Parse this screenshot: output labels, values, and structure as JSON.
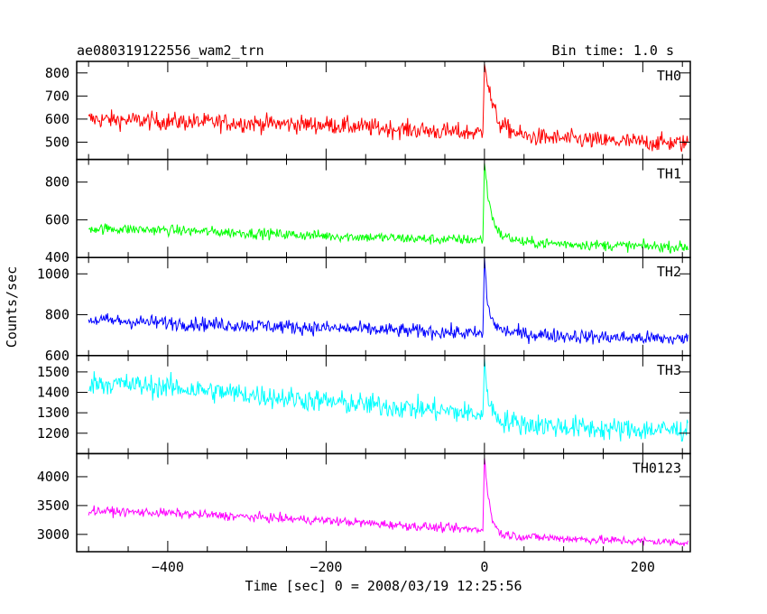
{
  "chart_data": {
    "type": "line",
    "title": "ae080319122556_wam2_trn",
    "subtitle": "Bin time: 1.0 s",
    "xlabel": "Time [sec] 0 = 2008/03/19 12:25:56",
    "ylabel": "Counts/sec",
    "xlim": [
      -515,
      260
    ],
    "x_ticks": [
      -400,
      -200,
      0,
      200
    ],
    "x_tick_labels": [
      "−400",
      "−200",
      "0",
      "200"
    ],
    "x_range_data": [
      -500,
      257
    ],
    "peak_time": 0,
    "bin_time": 1.0,
    "panels": [
      {
        "name": "TH0",
        "color": "#ff0000",
        "ylim": [
          425,
          850
        ],
        "yticks": [
          500,
          600,
          700,
          800
        ],
        "trend": [
          [
            -500,
            600
          ],
          [
            -400,
            590
          ],
          [
            -200,
            575
          ],
          [
            -50,
            545
          ],
          [
            -2,
            540
          ],
          [
            0,
            850
          ],
          [
            4,
            760
          ],
          [
            10,
            660
          ],
          [
            20,
            575
          ],
          [
            50,
            525
          ],
          [
            150,
            505
          ],
          [
            257,
            495
          ]
        ],
        "noise": 28
      },
      {
        "name": "TH1",
        "color": "#00ff00",
        "ylim": [
          400,
          920
        ],
        "yticks": [
          400,
          600,
          800
        ],
        "trend": [
          [
            -500,
            555
          ],
          [
            -400,
            545
          ],
          [
            -200,
            515
          ],
          [
            -50,
            495
          ],
          [
            -2,
            495
          ],
          [
            0,
            900
          ],
          [
            4,
            740
          ],
          [
            10,
            610
          ],
          [
            20,
            520
          ],
          [
            50,
            480
          ],
          [
            150,
            465
          ],
          [
            257,
            455
          ]
        ],
        "noise": 20
      },
      {
        "name": "TH2",
        "color": "#0000ff",
        "ylim": [
          600,
          1080
        ],
        "yticks": [
          600,
          800,
          1000
        ],
        "trend": [
          [
            -500,
            775
          ],
          [
            -400,
            760
          ],
          [
            -200,
            735
          ],
          [
            -50,
            715
          ],
          [
            -2,
            705
          ],
          [
            0,
            1075
          ],
          [
            4,
            850
          ],
          [
            10,
            770
          ],
          [
            20,
            725
          ],
          [
            50,
            705
          ],
          [
            150,
            690
          ],
          [
            257,
            680
          ]
        ],
        "noise": 25
      },
      {
        "name": "TH3",
        "color": "#00ffff",
        "ylim": [
          1100,
          1580
        ],
        "yticks": [
          1200,
          1300,
          1400,
          1500
        ],
        "trend": [
          [
            -500,
            1450
          ],
          [
            -400,
            1425
          ],
          [
            -200,
            1355
          ],
          [
            -50,
            1310
          ],
          [
            -2,
            1290
          ],
          [
            0,
            1540
          ],
          [
            4,
            1400
          ],
          [
            10,
            1310
          ],
          [
            20,
            1265
          ],
          [
            50,
            1245
          ],
          [
            150,
            1220
          ],
          [
            257,
            1215
          ]
        ],
        "noise": 40
      },
      {
        "name": "TH0123",
        "color": "#ff00ff",
        "ylim": [
          2700,
          4400
        ],
        "yticks": [
          3000,
          3500,
          4000
        ],
        "trend": [
          [
            -500,
            3410
          ],
          [
            -400,
            3370
          ],
          [
            -200,
            3240
          ],
          [
            -50,
            3110
          ],
          [
            -2,
            3080
          ],
          [
            0,
            4350
          ],
          [
            4,
            3700
          ],
          [
            10,
            3250
          ],
          [
            20,
            3010
          ],
          [
            50,
            2960
          ],
          [
            150,
            2900
          ],
          [
            257,
            2860
          ]
        ],
        "noise": 55
      }
    ]
  }
}
